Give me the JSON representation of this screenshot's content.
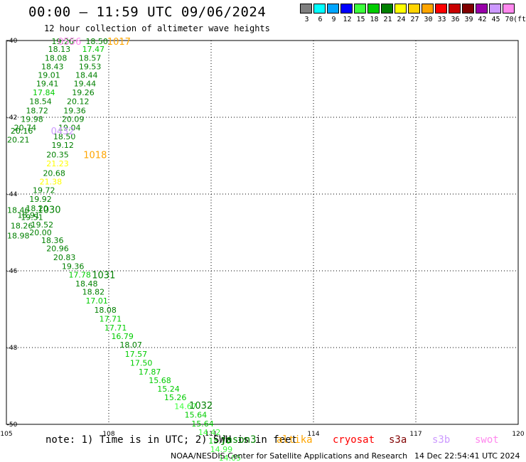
{
  "header": {
    "title": "00:00 – 11:59 UTC 09/06/2024",
    "subtitle": "12 hour collection of altimeter wave heights"
  },
  "legend": {
    "unit": "(ft)",
    "entries": [
      {
        "label": "3",
        "color": "#7f7f7f"
      },
      {
        "label": "6",
        "color": "#00ffff"
      },
      {
        "label": "9",
        "color": "#00a5ff"
      },
      {
        "label": "12",
        "color": "#0000ff"
      },
      {
        "label": "15",
        "color": "#3cff3c"
      },
      {
        "label": "18",
        "color": "#00cc00"
      },
      {
        "label": "21",
        "color": "#008000"
      },
      {
        "label": "24",
        "color": "#ffff00"
      },
      {
        "label": "27",
        "color": "#ffd400"
      },
      {
        "label": "30",
        "color": "#ffa500"
      },
      {
        "label": "33",
        "color": "#ff0000"
      },
      {
        "label": "36",
        "color": "#c80000"
      },
      {
        "label": "39",
        "color": "#800000"
      },
      {
        "label": "42",
        "color": "#9900aa"
      },
      {
        "label": "45",
        "color": "#cc99ff"
      },
      {
        "label": "70",
        "color": "#ff88ee"
      }
    ]
  },
  "chart_data": {
    "type": "scatter",
    "title": "00:00 – 11:59 UTC 09/06/2024",
    "subtitle": "12 hour collection of altimeter wave heights",
    "xlim": [
      105,
      120
    ],
    "ylim": [
      -50,
      -40
    ],
    "x_ticks": [
      "105",
      "108",
      "111",
      "114",
      "117",
      "120"
    ],
    "y_ticks": [
      "-40",
      "-42",
      "-44",
      "-46",
      "-48",
      "-50"
    ],
    "grid": true,
    "points": [
      {
        "lon": 106.65,
        "lat": -40.02,
        "swh": "19.26",
        "color": "#008000"
      },
      {
        "lon": 107.65,
        "lat": -40.02,
        "swh": "18.50",
        "color": "#008000"
      },
      {
        "lon": 106.55,
        "lat": -40.22,
        "swh": "18.13",
        "color": "#008000"
      },
      {
        "lon": 107.55,
        "lat": -40.22,
        "swh": "17.47",
        "color": "#00cc00"
      },
      {
        "lon": 106.45,
        "lat": -40.45,
        "swh": "18.08",
        "color": "#008000"
      },
      {
        "lon": 107.45,
        "lat": -40.45,
        "swh": "18.57",
        "color": "#008000"
      },
      {
        "lon": 106.35,
        "lat": -40.68,
        "swh": "18.43",
        "color": "#008000"
      },
      {
        "lon": 107.45,
        "lat": -40.68,
        "swh": "19.53",
        "color": "#008000"
      },
      {
        "lon": 106.25,
        "lat": -40.9,
        "swh": "19.01",
        "color": "#008000"
      },
      {
        "lon": 107.35,
        "lat": -40.9,
        "swh": "18.44",
        "color": "#008000"
      },
      {
        "lon": 106.2,
        "lat": -41.12,
        "swh": "19.41",
        "color": "#008000"
      },
      {
        "lon": 107.3,
        "lat": -41.12,
        "swh": "19.44",
        "color": "#008000"
      },
      {
        "lon": 106.1,
        "lat": -41.35,
        "swh": "17.84",
        "color": "#00cc00"
      },
      {
        "lon": 107.25,
        "lat": -41.35,
        "swh": "19.26",
        "color": "#008000"
      },
      {
        "lon": 106.0,
        "lat": -41.58,
        "swh": "18.54",
        "color": "#008000"
      },
      {
        "lon": 107.1,
        "lat": -41.58,
        "swh": "20.12",
        "color": "#008000"
      },
      {
        "lon": 105.9,
        "lat": -41.82,
        "swh": "18.72",
        "color": "#008000"
      },
      {
        "lon": 107.0,
        "lat": -41.82,
        "swh": "19.36",
        "color": "#008000"
      },
      {
        "lon": 105.75,
        "lat": -42.05,
        "swh": "19.98",
        "color": "#008000"
      },
      {
        "lon": 106.95,
        "lat": -42.05,
        "swh": "20.09",
        "color": "#008000"
      },
      {
        "lon": 105.55,
        "lat": -42.27,
        "swh": "20.74",
        "color": "#008000"
      },
      {
        "lon": 106.85,
        "lat": -42.27,
        "swh": "19.04",
        "color": "#008000"
      },
      {
        "lon": 105.45,
        "lat": -42.35,
        "swh": "20.16",
        "color": "#008000"
      },
      {
        "lon": 106.7,
        "lat": -42.5,
        "swh": "18.50",
        "color": "#008000"
      },
      {
        "lon": 105.35,
        "lat": -42.58,
        "swh": "20.21",
        "color": "#008000"
      },
      {
        "lon": 106.65,
        "lat": -42.72,
        "swh": "19.12",
        "color": "#008000"
      },
      {
        "lon": 106.5,
        "lat": -42.97,
        "swh": "20.35",
        "color": "#008000"
      },
      {
        "lon": 106.5,
        "lat": -43.2,
        "swh": "21.23",
        "color": "#ffff00"
      },
      {
        "lon": 106.4,
        "lat": -43.45,
        "swh": "20.68",
        "color": "#008000"
      },
      {
        "lon": 106.3,
        "lat": -43.68,
        "swh": "21.38",
        "color": "#ffff00"
      },
      {
        "lon": 106.1,
        "lat": -43.9,
        "swh": "19.72",
        "color": "#008000"
      },
      {
        "lon": 106.0,
        "lat": -44.13,
        "swh": "19.92",
        "color": "#008000"
      },
      {
        "lon": 105.9,
        "lat": -44.37,
        "swh": "18.20",
        "color": "#008000"
      },
      {
        "lon": 105.35,
        "lat": -44.42,
        "swh": "18.46",
        "color": "#008000"
      },
      {
        "lon": 105.65,
        "lat": -44.55,
        "swh": "18.91",
        "color": "#008000"
      },
      {
        "lon": 105.75,
        "lat": -44.6,
        "swh": "19.51",
        "color": "#008000"
      },
      {
        "lon": 106.05,
        "lat": -44.8,
        "swh": "19.52",
        "color": "#008000"
      },
      {
        "lon": 105.45,
        "lat": -44.82,
        "swh": "18.26",
        "color": "#008000"
      },
      {
        "lon": 106.0,
        "lat": -45.0,
        "swh": "20.00",
        "color": "#008000"
      },
      {
        "lon": 105.35,
        "lat": -45.08,
        "swh": "18.98",
        "color": "#008000"
      },
      {
        "lon": 106.35,
        "lat": -45.2,
        "swh": "18.36",
        "color": "#008000"
      },
      {
        "lon": 106.5,
        "lat": -45.42,
        "swh": "20.96",
        "color": "#008000"
      },
      {
        "lon": 106.7,
        "lat": -45.65,
        "swh": "20.83",
        "color": "#008000"
      },
      {
        "lon": 106.95,
        "lat": -45.88,
        "swh": "19.36",
        "color": "#008000"
      },
      {
        "lon": 107.15,
        "lat": -46.1,
        "swh": "17.78",
        "color": "#00cc00"
      },
      {
        "lon": 107.35,
        "lat": -46.33,
        "swh": "18.48",
        "color": "#008000"
      },
      {
        "lon": 107.55,
        "lat": -46.55,
        "swh": "18.82",
        "color": "#008000"
      },
      {
        "lon": 107.65,
        "lat": -46.78,
        "swh": "17.01",
        "color": "#00cc00"
      },
      {
        "lon": 107.9,
        "lat": -47.02,
        "swh": "18.08",
        "color": "#008000"
      },
      {
        "lon": 108.05,
        "lat": -47.25,
        "swh": "17.71",
        "color": "#00cc00"
      },
      {
        "lon": 108.2,
        "lat": -47.48,
        "swh": "17.71",
        "color": "#00cc00"
      },
      {
        "lon": 108.4,
        "lat": -47.7,
        "swh": "16.79",
        "color": "#00cc00"
      },
      {
        "lon": 108.65,
        "lat": -47.93,
        "swh": "18.07",
        "color": "#008000"
      },
      {
        "lon": 108.8,
        "lat": -48.17,
        "swh": "17.57",
        "color": "#00cc00"
      },
      {
        "lon": 108.95,
        "lat": -48.4,
        "swh": "17.50",
        "color": "#00cc00"
      },
      {
        "lon": 109.2,
        "lat": -48.63,
        "swh": "17.87",
        "color": "#00cc00"
      },
      {
        "lon": 109.5,
        "lat": -48.85,
        "swh": "15.68",
        "color": "#00cc00"
      },
      {
        "lon": 109.75,
        "lat": -49.07,
        "swh": "15.24",
        "color": "#00cc00"
      },
      {
        "lon": 109.95,
        "lat": -49.3,
        "swh": "15.26",
        "color": "#00cc00"
      },
      {
        "lon": 110.25,
        "lat": -49.53,
        "swh": "14.67",
        "color": "#3cff3c"
      },
      {
        "lon": 110.55,
        "lat": -49.75,
        "swh": "15.64",
        "color": "#00cc00"
      },
      {
        "lon": 110.75,
        "lat": -49.98,
        "swh": "15.64",
        "color": "#00cc00"
      },
      {
        "lon": 110.95,
        "lat": -50.2,
        "swh": "14.42",
        "color": "#3cff3c"
      },
      {
        "lon": 111.25,
        "lat": -50.43,
        "swh": "15.70",
        "color": "#00cc00"
      },
      {
        "lon": 111.3,
        "lat": -50.65,
        "swh": "14.99",
        "color": "#3cff3c"
      },
      {
        "lon": 111.55,
        "lat": -50.87,
        "swh": "14.05",
        "color": "#3cff3c"
      }
    ],
    "time_labels": [
      {
        "lon": 106.85,
        "lat": -40.02,
        "text": "0556",
        "color": "#ff88ee"
      },
      {
        "lon": 108.3,
        "lat": -40.02,
        "text": "1017",
        "color": "#ffa500"
      },
      {
        "lon": 106.65,
        "lat": -42.35,
        "text": "0432",
        "color": "#cc99ff"
      },
      {
        "lon": 107.6,
        "lat": -42.97,
        "text": "1018",
        "color": "#ffa500"
      },
      {
        "lon": 106.25,
        "lat": -44.4,
        "text": "1030",
        "color": "#008000"
      },
      {
        "lon": 107.85,
        "lat": -46.1,
        "text": "1031",
        "color": "#008000"
      },
      {
        "lon": 110.7,
        "lat": -49.5,
        "text": "1032",
        "color": "#008000"
      }
    ]
  },
  "footer": {
    "note": "note: 1) Time is in UTC; 2) SWH is in feet",
    "satellites": [
      {
        "name": "jason3",
        "color": "#008000"
      },
      {
        "name": "altika",
        "color": "#ffa500"
      },
      {
        "name": "cryosat",
        "color": "#ff0000"
      },
      {
        "name": "s3a",
        "color": "#800000"
      },
      {
        "name": "s3b",
        "color": "#cc99ff"
      },
      {
        "name": "swot",
        "color": "#ff88ee"
      }
    ],
    "credit": "NOAA/NESDIS Center for Satellite Applications and Research",
    "timestamp": "14 Dec 22:54:41 UTC 2024"
  }
}
